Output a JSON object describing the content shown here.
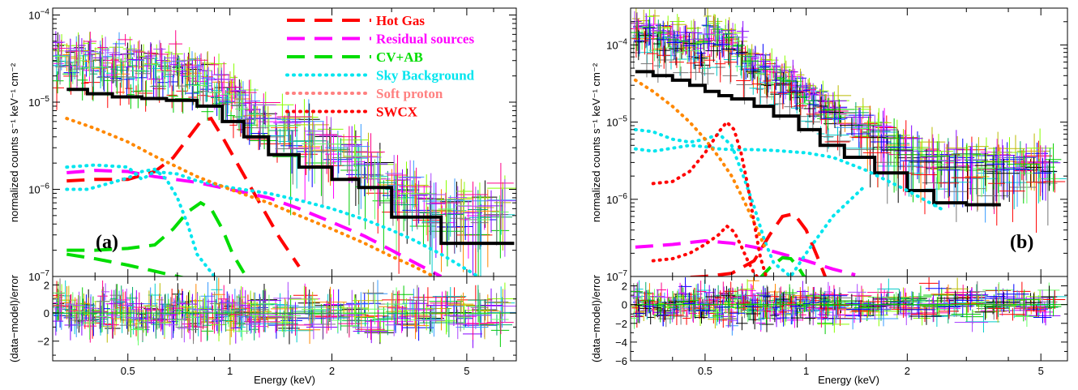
{
  "chart_data": [
    {
      "type": "line",
      "panel_label": "(a)",
      "xlabel": "Energy (keV)",
      "ylabel_top": "normalized counts s⁻¹ keV⁻¹ cm⁻²",
      "ylabel_bottom": "(data−model)/error",
      "xscale": "log",
      "yscale_top": "log",
      "xlim": [
        0.3,
        7.0
      ],
      "ylim_top": [
        1e-07,
        0.00012
      ],
      "ylim_bottom": [
        -3.4,
        2.6
      ],
      "x_ticks": [
        {
          "value": 0.5,
          "label": "0.5"
        },
        {
          "value": 1,
          "label": "1"
        },
        {
          "value": 2,
          "label": "2"
        },
        {
          "value": 5,
          "label": "5"
        }
      ],
      "y_ticks_top": [
        {
          "value": 1e-07,
          "base": "10",
          "exp": "−7"
        },
        {
          "value": 1e-06,
          "base": "10",
          "exp": "−6"
        },
        {
          "value": 1e-05,
          "base": "10",
          "exp": "−5"
        },
        {
          "value": 0.0001,
          "base": "10",
          "exp": "−4"
        }
      ],
      "y_ticks_bottom": [
        {
          "value": -2,
          "label": "−2"
        },
        {
          "value": 0,
          "label": "0"
        },
        {
          "value": 2,
          "label": "2"
        }
      ],
      "legend": {
        "placement": "top-right",
        "entries": [
          {
            "label": "Hot Gas",
            "color": "#ff0000",
            "style": "long-dash"
          },
          {
            "label": "Residual sources",
            "color": "#ff00ff",
            "style": "long-dash"
          },
          {
            "label": "CV+AB",
            "color": "#00dd00",
            "style": "long-dash"
          },
          {
            "label": "Sky Background",
            "color": "#00e5ee",
            "style": "dotted"
          },
          {
            "label": "Soft proton",
            "color": "#ff8080",
            "style": "dotted"
          },
          {
            "label": "SWCX",
            "color": "#ff0000",
            "style": "dotted"
          }
        ]
      },
      "model_series": [
        {
          "color": "#000000",
          "style": "thick-step",
          "x": [
            0.33,
            0.38,
            0.45,
            0.55,
            0.65,
            0.8,
            0.95,
            1.1,
            1.3,
            1.6,
            2.0,
            2.4,
            3.0,
            4.2,
            6.9
          ],
          "y": [
            1.4e-05,
            1.25e-05,
            1.15e-05,
            1.1e-05,
            1.05e-05,
            9e-06,
            6e-06,
            4e-06,
            2.5e-06,
            1.8e-06,
            1.3e-06,
            1.05e-06,
            4.8e-07,
            2.4e-07,
            2.4e-07
          ]
        },
        {
          "color": "#ff0000",
          "style": "long-dash",
          "x": [
            0.33,
            0.4,
            0.5,
            0.6,
            0.68,
            0.75,
            0.82,
            0.88,
            0.95,
            1.05,
            1.2,
            1.4,
            1.6
          ],
          "y": [
            1.25e-06,
            1.3e-06,
            1.3e-06,
            1.6e-06,
            2.3e-06,
            3.8e-06,
            6e-06,
            6.5e-06,
            4e-06,
            2e-06,
            8e-07,
            2.8e-07,
            1.3e-07
          ]
        },
        {
          "color": "#ff00ff",
          "style": "long-dash",
          "x": [
            0.33,
            0.4,
            0.5,
            0.6,
            0.8,
            1.0,
            1.3,
            1.6,
            2.0,
            2.5,
            3.0,
            3.5,
            4.2
          ],
          "y": [
            1.55e-06,
            1.65e-06,
            1.6e-06,
            1.4e-06,
            1.2e-06,
            1e-06,
            8e-07,
            6e-07,
            4.2e-07,
            2.9e-07,
            2e-07,
            1.45e-07,
            1e-07
          ]
        },
        {
          "color": "#00dd00",
          "style": "long-dash",
          "x": [
            0.33,
            0.4,
            0.5,
            0.6,
            0.68,
            0.75,
            0.82,
            0.88,
            0.95,
            1.02,
            1.1
          ],
          "y": [
            2e-07,
            2e-07,
            2.1e-07,
            2.3e-07,
            3.5e-07,
            5.5e-07,
            7e-07,
            6e-07,
            3.5e-07,
            1.8e-07,
            1.1e-07
          ]
        },
        {
          "color": "#00dd00",
          "style": "long-dash",
          "x": [
            0.33,
            0.4,
            0.5,
            0.6,
            0.7,
            0.8
          ],
          "y": [
            1.8e-07,
            1.6e-07,
            1.35e-07,
            1.15e-07,
            1e-07,
            9e-08
          ]
        },
        {
          "color": "#00e5ee",
          "style": "dotted",
          "x": [
            0.33,
            0.4,
            0.5,
            0.55,
            0.6,
            0.7,
            0.8,
            1.0,
            1.3,
            1.6,
            2.0,
            2.5,
            3.0,
            3.5,
            4.2,
            5.0,
            5.4
          ],
          "y": [
            1.8e-06,
            1.9e-06,
            1.8e-06,
            1.3e-06,
            1.6e-06,
            1.5e-06,
            1.25e-06,
            1.05e-06,
            9e-07,
            7.5e-07,
            6e-07,
            4.5e-07,
            3.4e-07,
            2.6e-07,
            1.8e-07,
            1.2e-07,
            1e-07
          ]
        },
        {
          "color": "#00e5ee",
          "style": "dotted",
          "x": [
            0.33,
            0.38,
            0.45,
            0.5,
            0.55,
            0.6,
            0.65,
            0.7,
            0.75,
            0.8,
            0.9
          ],
          "y": [
            1e-06,
            1e-06,
            1.2e-06,
            1.35e-06,
            1.6e-06,
            1.7e-06,
            1.3e-06,
            8e-07,
            4e-07,
            1.8e-07,
            1e-07
          ]
        },
        {
          "color": "#ff8800",
          "style": "dotted",
          "x": [
            0.33,
            0.4,
            0.5,
            0.6,
            0.7,
            0.8,
            1.0,
            1.3,
            1.6,
            2.0,
            2.5,
            3.0,
            3.5,
            4.0
          ],
          "y": [
            6.5e-06,
            5e-06,
            3.5e-06,
            2.4e-06,
            1.8e-06,
            1.4e-06,
            1e-06,
            7e-07,
            5e-07,
            3.5e-07,
            2.4e-07,
            1.7e-07,
            1.3e-07,
            1e-07
          ]
        }
      ]
    },
    {
      "type": "line",
      "panel_label": "(b)",
      "xlabel": "Energy (keV)",
      "ylabel_top": "normalized counts s⁻¹ keV⁻¹ cm⁻²",
      "ylabel_bottom": "(data−model)/error",
      "xscale": "log",
      "yscale_top": "log",
      "xlim": [
        0.3,
        6.0
      ],
      "ylim_top": [
        1e-07,
        0.0003
      ],
      "ylim_bottom": [
        -6,
        3
      ],
      "x_ticks": [
        {
          "value": 0.5,
          "label": "0.5"
        },
        {
          "value": 1,
          "label": "1"
        },
        {
          "value": 2,
          "label": "2"
        },
        {
          "value": 5,
          "label": "5"
        }
      ],
      "y_ticks_top": [
        {
          "value": 1e-07,
          "base": "10",
          "exp": "−7"
        },
        {
          "value": 1e-06,
          "base": "10",
          "exp": "−6"
        },
        {
          "value": 1e-05,
          "base": "10",
          "exp": "−5"
        },
        {
          "value": 0.0001,
          "base": "10",
          "exp": "−4"
        }
      ],
      "y_ticks_bottom": [
        {
          "value": -6,
          "label": "−6"
        },
        {
          "value": -4,
          "label": "−4"
        },
        {
          "value": -2,
          "label": "−2"
        },
        {
          "value": 0,
          "label": "0"
        },
        {
          "value": 2,
          "label": "2"
        }
      ],
      "model_series": [
        {
          "color": "#000000",
          "style": "thick-step",
          "x": [
            0.31,
            0.35,
            0.4,
            0.45,
            0.5,
            0.55,
            0.6,
            0.7,
            0.8,
            0.95,
            1.1,
            1.3,
            1.6,
            2.0,
            2.4,
            3.0,
            3.8
          ],
          "y": [
            4.5e-05,
            4e-05,
            3.5e-05,
            3e-05,
            2.5e-05,
            2.2e-05,
            2e-05,
            1.6e-05,
            1.2e-05,
            8e-06,
            5e-06,
            3.5e-06,
            2.2e-06,
            1.3e-06,
            9e-07,
            8.5e-07,
            8.5e-07
          ]
        },
        {
          "color": "#ff0000",
          "style": "long-dash",
          "x": [
            0.31,
            0.4,
            0.5,
            0.6,
            0.7,
            0.78,
            0.85,
            0.92,
            1.0,
            1.08,
            1.15
          ],
          "y": [
            9e-08,
            9.5e-08,
            1e-07,
            1.1e-07,
            1.6e-07,
            3.5e-07,
            6e-07,
            6.5e-07,
            4e-07,
            1.8e-07,
            9e-08
          ]
        },
        {
          "color": "#ff00ff",
          "style": "long-dash",
          "x": [
            0.31,
            0.4,
            0.5,
            0.6,
            0.7,
            0.8,
            1.0,
            1.2,
            1.4
          ],
          "y": [
            2.4e-07,
            2.6e-07,
            2.9e-07,
            2.7e-07,
            2.4e-07,
            2.1e-07,
            1.6e-07,
            1.25e-07,
            1.05e-07
          ]
        },
        {
          "color": "#00dd00",
          "style": "long-dash",
          "x": [
            0.72,
            0.78,
            0.85,
            0.9,
            0.95,
            1.0
          ],
          "y": [
            9e-08,
            1.3e-07,
            1.75e-07,
            1.7e-07,
            1.3e-07,
            9e-08
          ]
        },
        {
          "color": "#00e5ee",
          "style": "dotted",
          "x": [
            0.31,
            0.35,
            0.4,
            0.45,
            0.5,
            0.55,
            0.6,
            0.7,
            0.8,
            1.0,
            1.2,
            1.5,
            2.0,
            2.6
          ],
          "y": [
            4.5e-06,
            4.2e-06,
            4.6e-06,
            5e-06,
            4.8e-06,
            4.5e-06,
            4.4e-06,
            4.4e-06,
            4.3e-06,
            4e-06,
            3.5e-06,
            2.4e-06,
            1.3e-06,
            7e-07
          ]
        },
        {
          "color": "#00e5ee",
          "style": "dotted",
          "x": [
            0.31,
            0.35,
            0.4,
            0.45,
            0.5,
            0.55,
            0.6,
            0.65,
            0.7,
            0.75,
            0.8,
            0.9,
            1.0,
            1.2,
            1.5
          ],
          "y": [
            8e-06,
            7.5e-06,
            6e-06,
            5.5e-06,
            6e-06,
            7e-06,
            5e-06,
            2e-06,
            8e-07,
            3e-07,
            1.5e-07,
            1e-07,
            2e-07,
            6e-07,
            1.5e-06
          ]
        },
        {
          "color": "#ff8800",
          "style": "dotted",
          "x": [
            0.31,
            0.35,
            0.4,
            0.45,
            0.5,
            0.55,
            0.6,
            0.65,
            0.7,
            0.75
          ],
          "y": [
            3.5e-05,
            2.5e-05,
            1.6e-05,
            1e-05,
            6e-06,
            3.5e-06,
            2e-06,
            1e-06,
            5e-07,
            2.5e-07
          ]
        },
        {
          "color": "#ff0000",
          "style": "dotted",
          "x": [
            0.35,
            0.4,
            0.45,
            0.5,
            0.55,
            0.58,
            0.61,
            0.64,
            0.67,
            0.7,
            0.73,
            0.76
          ],
          "y": [
            1.6e-06,
            1.7e-06,
            2.3e-06,
            4e-06,
            7.5e-06,
            1e-05,
            8e-06,
            4e-06,
            1.5e-06,
            5e-07,
            1.8e-07,
            1e-07
          ]
        },
        {
          "color": "#ff0000",
          "style": "dotted",
          "x": [
            0.35,
            0.4,
            0.45,
            0.5,
            0.55,
            0.58,
            0.61,
            0.64,
            0.67,
            0.7,
            0.73,
            0.76
          ],
          "y": [
            1.6e-07,
            1.7e-07,
            2e-07,
            2.6e-07,
            3.5e-07,
            4.5e-07,
            3.8e-07,
            2.5e-07,
            1.6e-07,
            1.1e-07,
            9e-08,
            8e-08
          ]
        }
      ]
    }
  ]
}
